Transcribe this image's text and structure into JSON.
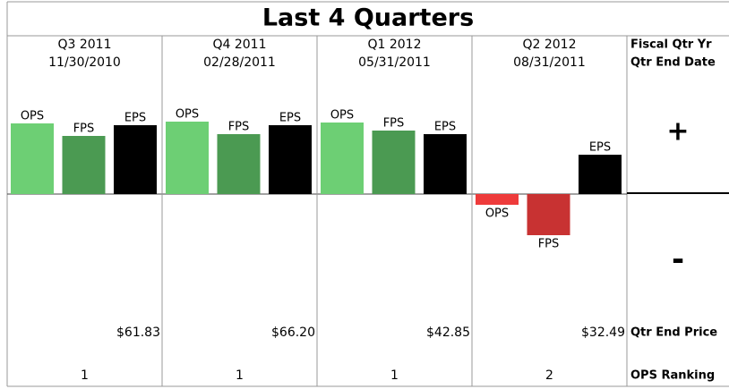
{
  "chart_data": {
    "type": "bar",
    "title": "Last 4 Quarters",
    "categories": [
      "Q3 2011",
      "Q4 2011",
      "Q1 2012",
      "Q2 2012"
    ],
    "dates": [
      "11/30/2010",
      "02/28/2011",
      "05/31/2011",
      "08/31/2011"
    ],
    "prices": [
      "$61.83",
      "$66.20",
      "$42.85",
      "$32.49"
    ],
    "rankings": [
      "1",
      "1",
      "1",
      "2"
    ],
    "row_labels": {
      "quarter": "Fiscal Qtr Yr",
      "date": "Qtr End Date",
      "price": "Qtr End Price",
      "ranking": "OPS Ranking",
      "positive": "+",
      "negative": "-"
    },
    "series": [
      {
        "name": "OPS",
        "color": "#6dcf74",
        "negative_color": "#ee3b3b",
        "values": [
          79,
          81,
          80,
          -12
        ]
      },
      {
        "name": "FPS",
        "color": "#4b9a52",
        "negative_color": "#c83232",
        "values": [
          65,
          67,
          71,
          -46
        ]
      },
      {
        "name": "EPS",
        "color": "#000000",
        "negative_color": "#000000",
        "values": [
          77,
          77,
          67,
          44
        ]
      }
    ],
    "ylim": [
      -215,
      177
    ]
  }
}
